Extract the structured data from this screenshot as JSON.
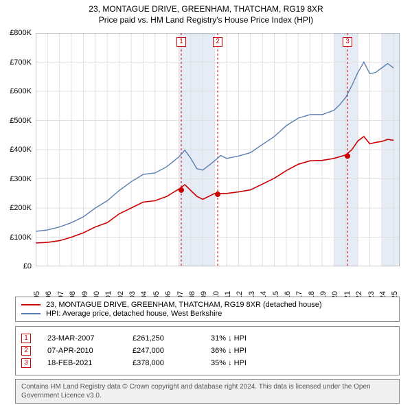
{
  "title": "23, MONTAGUE DRIVE, GREENHAM, THATCHAM, RG19 8XR",
  "subtitle": "Price paid vs. HM Land Registry's House Price Index (HPI)",
  "chart": {
    "type": "line",
    "background_color": "#ffffff",
    "grid_color": "#e0e0e0",
    "plot_border_color": "#888888",
    "highlight_band_color": "#e6ecf5",
    "highlight_bands_years": [
      [
        2007,
        2010
      ],
      [
        2020,
        2022
      ],
      [
        2024,
        2025.5
      ]
    ],
    "xlim": [
      1995,
      2025.5
    ],
    "ylim": [
      0,
      800000
    ],
    "ytick_step": 100000,
    "yticks": [
      "£0",
      "£100K",
      "£200K",
      "£300K",
      "£400K",
      "£500K",
      "£600K",
      "£700K",
      "£800K"
    ],
    "xticks": [
      1995,
      1996,
      1997,
      1998,
      1999,
      2000,
      2001,
      2002,
      2003,
      2004,
      2005,
      2006,
      2007,
      2008,
      2009,
      2010,
      2011,
      2012,
      2013,
      2014,
      2015,
      2016,
      2017,
      2018,
      2019,
      2020,
      2021,
      2022,
      2023,
      2024,
      2025
    ],
    "series": [
      {
        "name": "property_price",
        "label": "23, MONTAGUE DRIVE, GREENHAM, THATCHAM, RG19 8XR (detached house)",
        "color": "#cc0000",
        "line_width": 1.6,
        "data": [
          [
            1995,
            80000
          ],
          [
            1996,
            82000
          ],
          [
            1997,
            88000
          ],
          [
            1998,
            100000
          ],
          [
            1999,
            115000
          ],
          [
            2000,
            135000
          ],
          [
            2001,
            150000
          ],
          [
            2002,
            180000
          ],
          [
            2003,
            200000
          ],
          [
            2004,
            220000
          ],
          [
            2005,
            225000
          ],
          [
            2006,
            240000
          ],
          [
            2007,
            265000
          ],
          [
            2007.5,
            280000
          ],
          [
            2008,
            260000
          ],
          [
            2008.5,
            240000
          ],
          [
            2009,
            230000
          ],
          [
            2010,
            250000
          ],
          [
            2011,
            250000
          ],
          [
            2012,
            255000
          ],
          [
            2013,
            262000
          ],
          [
            2014,
            282000
          ],
          [
            2015,
            302000
          ],
          [
            2016,
            328000
          ],
          [
            2017,
            350000
          ],
          [
            2018,
            362000
          ],
          [
            2019,
            363000
          ],
          [
            2020,
            370000
          ],
          [
            2021,
            382000
          ],
          [
            2021.5,
            400000
          ],
          [
            2022,
            430000
          ],
          [
            2022.5,
            445000
          ],
          [
            2023,
            420000
          ],
          [
            2023.5,
            425000
          ],
          [
            2024,
            428000
          ],
          [
            2024.5,
            435000
          ],
          [
            2025,
            432000
          ]
        ],
        "sale_markers": [
          {
            "x": 2007.2,
            "y": 261250
          },
          {
            "x": 2010.25,
            "y": 247000
          },
          {
            "x": 2021.13,
            "y": 378000
          }
        ]
      },
      {
        "name": "hpi",
        "label": "HPI: Average price, detached house, West Berkshire",
        "color": "#5b7fb1",
        "line_width": 1.4,
        "data": [
          [
            1995,
            120000
          ],
          [
            1996,
            125000
          ],
          [
            1997,
            135000
          ],
          [
            1998,
            150000
          ],
          [
            1999,
            170000
          ],
          [
            2000,
            200000
          ],
          [
            2001,
            225000
          ],
          [
            2002,
            260000
          ],
          [
            2003,
            290000
          ],
          [
            2004,
            315000
          ],
          [
            2005,
            320000
          ],
          [
            2006,
            342000
          ],
          [
            2007,
            375000
          ],
          [
            2007.5,
            398000
          ],
          [
            2008,
            370000
          ],
          [
            2008.5,
            335000
          ],
          [
            2009,
            330000
          ],
          [
            2010,
            362000
          ],
          [
            2010.5,
            380000
          ],
          [
            2011,
            370000
          ],
          [
            2012,
            378000
          ],
          [
            2013,
            390000
          ],
          [
            2014,
            418000
          ],
          [
            2015,
            445000
          ],
          [
            2016,
            482000
          ],
          [
            2017,
            508000
          ],
          [
            2018,
            520000
          ],
          [
            2019,
            520000
          ],
          [
            2020,
            535000
          ],
          [
            2020.5,
            555000
          ],
          [
            2021,
            580000
          ],
          [
            2021.5,
            620000
          ],
          [
            2022,
            665000
          ],
          [
            2022.5,
            700000
          ],
          [
            2023,
            660000
          ],
          [
            2023.5,
            665000
          ],
          [
            2024,
            680000
          ],
          [
            2024.5,
            695000
          ],
          [
            2025,
            680000
          ]
        ]
      }
    ],
    "sale_line_color": "#cc0000",
    "sale_line_dash": "3,3"
  },
  "legend": {
    "items": [
      {
        "color": "#cc0000",
        "label": "23, MONTAGUE DRIVE, GREENHAM, THATCHAM, RG19 8XR (detached house)"
      },
      {
        "color": "#5b7fb1",
        "label": "HPI: Average price, detached house, West Berkshire"
      }
    ]
  },
  "sales": [
    {
      "n": "1",
      "date": "23-MAR-2007",
      "price": "£261,250",
      "pct": "31% ↓ HPI"
    },
    {
      "n": "2",
      "date": "07-APR-2010",
      "price": "£247,000",
      "pct": "36% ↓ HPI"
    },
    {
      "n": "3",
      "date": "18-FEB-2021",
      "price": "£378,000",
      "pct": "35% ↓ HPI"
    }
  ],
  "footer": "Contains HM Land Registry data © Crown copyright and database right 2024. This data is licensed under the Open Government Licence v3.0.",
  "title_fontsize": 12,
  "label_fontsize": 11,
  "footer_fontsize": 10
}
